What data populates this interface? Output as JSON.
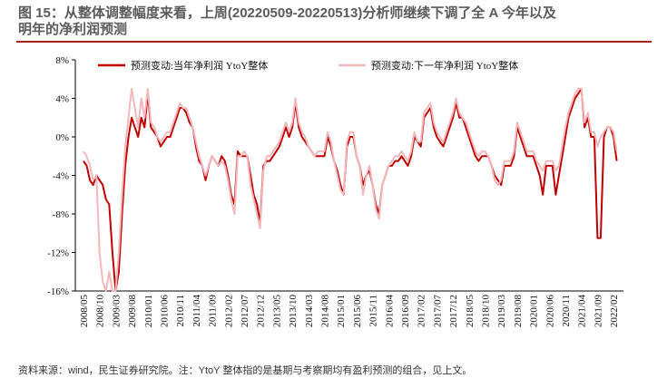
{
  "header": {
    "title": [
      "图 15：从整体调整幅度来看，上周(20220509-20220513)分析师继续下调了全 A 今年以及",
      "明年的净利润预测"
    ]
  },
  "chart_data": {
    "type": "line",
    "categories": [
      "2008/05",
      null,
      null,
      null,
      null,
      "2008/10",
      null,
      null,
      null,
      null,
      "2009/03",
      null,
      null,
      null,
      null,
      "2009/08",
      null,
      null,
      null,
      null,
      "2010/01",
      null,
      null,
      null,
      null,
      "2010/06",
      null,
      null,
      null,
      null,
      "2010/11",
      null,
      null,
      null,
      null,
      "2011/04",
      null,
      null,
      null,
      null,
      "2011/09",
      null,
      null,
      null,
      null,
      "2012/02",
      null,
      null,
      null,
      null,
      "2012/07",
      null,
      null,
      null,
      null,
      "2012/12",
      null,
      null,
      null,
      null,
      "2013/05",
      null,
      null,
      null,
      null,
      "2013/10",
      null,
      null,
      null,
      null,
      "2014/03",
      null,
      null,
      null,
      null,
      "2014/08",
      null,
      null,
      null,
      null,
      "2015/01",
      null,
      null,
      null,
      null,
      "2015/06",
      null,
      null,
      null,
      null,
      "2015/11",
      null,
      null,
      null,
      null,
      "2016/04",
      null,
      null,
      null,
      null,
      "2016/09",
      null,
      null,
      null,
      null,
      "2017/02",
      null,
      null,
      null,
      null,
      "2017/07",
      null,
      null,
      null,
      null,
      "2017/12",
      null,
      null,
      null,
      null,
      "2018/05",
      null,
      null,
      null,
      null,
      "2018/10",
      null,
      null,
      null,
      null,
      "2019/03",
      null,
      null,
      null,
      null,
      "2019/08",
      null,
      null,
      null,
      null,
      "2020/01",
      null,
      null,
      null,
      null,
      "2020/06",
      null,
      null,
      null,
      null,
      "2020/11",
      null,
      null,
      null,
      null,
      "2021/04",
      null,
      null,
      null,
      null,
      "2021/09",
      null,
      null,
      null,
      null,
      "2022/02",
      null
    ],
    "series": [
      {
        "name": "预测变动:当年净利润 YtoY整体",
        "color": "#c00000",
        "values": [
          -2.5,
          -3,
          -4.5,
          -5,
          -4,
          -4.5,
          -5,
          -6.5,
          -7,
          -12,
          -16,
          -14,
          -8,
          -3,
          0,
          2,
          1,
          0,
          2,
          1,
          4.5,
          1,
          0.5,
          0,
          -1,
          -0.5,
          0,
          0,
          1,
          2,
          3,
          3,
          2.5,
          1.5,
          1,
          -1,
          -2.5,
          -3,
          -4.5,
          -3,
          -2,
          -2.5,
          -3,
          -2,
          -2.5,
          -4,
          -6,
          -7,
          -1.5,
          -2,
          -2,
          -2,
          -4,
          -6,
          -7,
          -9,
          -3,
          -2.5,
          -2.5,
          -2,
          -1.5,
          -1,
          0,
          1,
          0,
          1,
          3.5,
          1,
          0,
          -0.5,
          -1,
          -1.5,
          -2,
          -2,
          -2,
          -2,
          0,
          -1,
          -2.5,
          -3.5,
          -5,
          -6,
          -1,
          0,
          0,
          -2,
          -3,
          -5,
          -4,
          -3.5,
          -5,
          -7,
          -8,
          -5,
          -4,
          -3,
          -3,
          -2.5,
          -2.5,
          -2,
          -2.5,
          -3,
          -2,
          0,
          -0.5,
          -1,
          2,
          2.5,
          3,
          1,
          0,
          -0.5,
          -1,
          0,
          1,
          2,
          3.5,
          2,
          2,
          1,
          0,
          -1,
          -2,
          -2.5,
          -2,
          -2,
          -2,
          -3,
          -4,
          -4.5,
          -5,
          -3,
          -3,
          -3,
          -2,
          1,
          0,
          -1,
          -2,
          -2,
          -2,
          -3,
          -4,
          -6,
          -3,
          -3,
          -3,
          -6,
          -4,
          -2,
          0,
          2,
          3,
          4,
          4.5,
          5,
          1,
          2,
          0,
          0,
          -10.5,
          -10.5,
          0,
          1,
          1,
          0,
          -2.5
        ]
      },
      {
        "name": "预测变动:下一年净利润 YtoY整体",
        "color": "#f4b8bc",
        "values": [
          -1.5,
          -2,
          -3,
          -4.5,
          -4,
          -12,
          -15,
          -16,
          -14,
          -16,
          -16,
          -12,
          -6,
          -1,
          2,
          5,
          3,
          1,
          4,
          2,
          5,
          1.5,
          1,
          0,
          -0.5,
          0,
          0.5,
          0.5,
          1.5,
          2.5,
          3.5,
          3,
          3,
          2,
          1,
          -0.5,
          -2,
          -3,
          -4,
          -3,
          -2,
          -2.5,
          -3,
          -2.5,
          -3,
          -4.5,
          -6.5,
          -8,
          -2,
          -2,
          -1.5,
          -2,
          -5,
          -6.5,
          -8,
          -9.5,
          -3.5,
          -2,
          -2,
          -1.5,
          -1,
          -0.5,
          0.5,
          1.5,
          0.5,
          1.5,
          4,
          1.5,
          0.5,
          0,
          -1,
          -1.5,
          -2,
          -1.5,
          -1.5,
          -1.5,
          0.5,
          -0.5,
          -2.5,
          -4,
          -5.5,
          -6,
          -0.5,
          0.5,
          0.5,
          -2,
          -3,
          -6,
          -4,
          -3,
          -5,
          -7.5,
          -8.5,
          -5,
          -4,
          -3,
          -2.5,
          -2,
          -2,
          -1.5,
          -2,
          -2.5,
          -1.5,
          0.5,
          -0.5,
          -0.5,
          2.5,
          3,
          3.5,
          1.5,
          0.5,
          0,
          -0.5,
          0.5,
          1.5,
          2.5,
          4,
          2.5,
          2,
          1.5,
          0.5,
          -0.5,
          -1.5,
          -2,
          -1.5,
          -1.5,
          -2,
          -3,
          -4.5,
          -5,
          -4.5,
          -2.5,
          -2.5,
          -2.5,
          -1.5,
          1.5,
          0.5,
          -0.5,
          -1.5,
          -1.5,
          -1.5,
          -2.5,
          -3,
          -3.5,
          -2.5,
          -2.5,
          -2.5,
          -3.5,
          -3,
          -1,
          1,
          2.5,
          3.5,
          4.5,
          5,
          5,
          1.5,
          2.5,
          0.5,
          0.5,
          -1,
          0,
          0.5,
          1,
          1,
          0.5,
          -1.5
        ]
      }
    ],
    "ylim": [
      -16,
      8
    ],
    "yticks": [
      {
        "value": -16,
        "label": "-16%"
      },
      {
        "value": -12,
        "label": "-12%"
      },
      {
        "value": -8,
        "label": "-8%"
      },
      {
        "value": -4,
        "label": "-4%"
      },
      {
        "value": 0,
        "label": "0%"
      },
      {
        "value": 4,
        "label": "4%"
      },
      {
        "value": 8,
        "label": "8%"
      }
    ],
    "legend": "top-left",
    "grid": false
  },
  "footer": {
    "note": "资料来源：wind，民生证券研究院。注：YtoY 整体指的是基期与考察期均有盈利预测的组合，见上文。"
  }
}
